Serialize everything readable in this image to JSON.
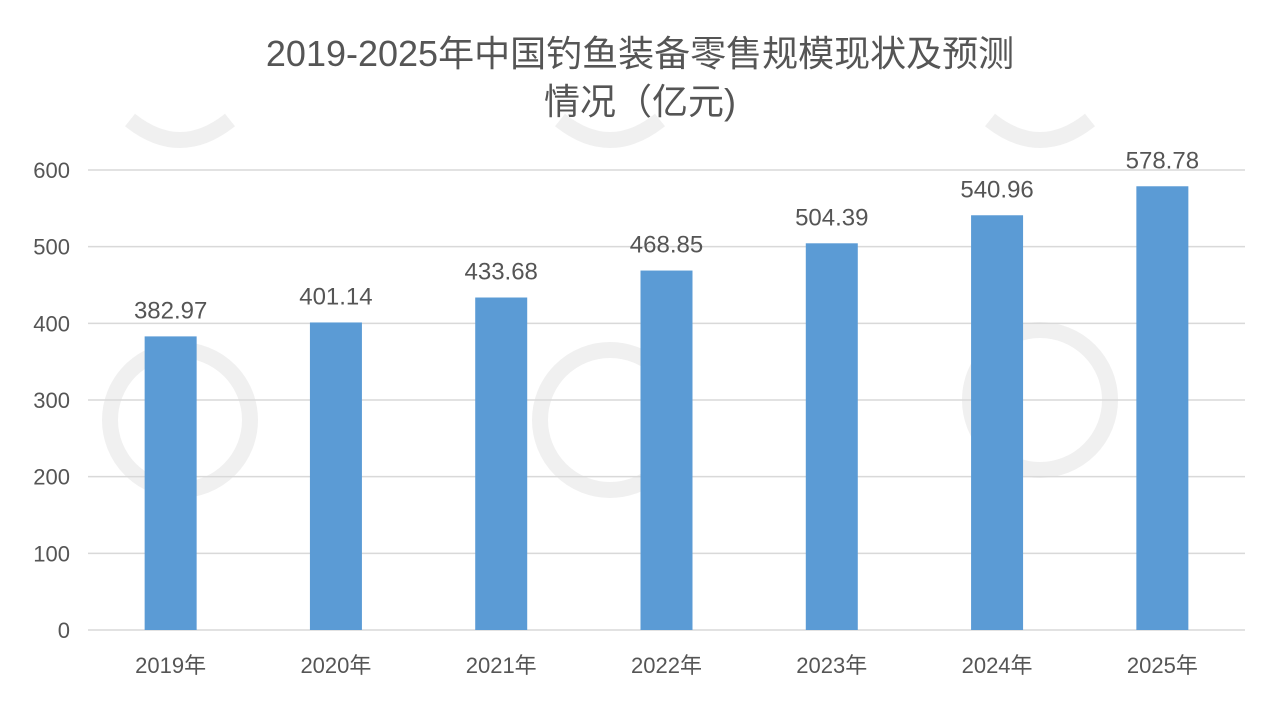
{
  "chart_data": {
    "type": "bar",
    "title_lines": [
      "2019-2025年中国钓鱼装备零售规模现状及预测",
      "情况（亿元)"
    ],
    "categories": [
      "2019年",
      "2020年",
      "2021年",
      "2022年",
      "2023年",
      "2024年",
      "2025年"
    ],
    "values": [
      382.97,
      401.14,
      433.68,
      468.85,
      504.39,
      540.96,
      578.78
    ],
    "value_labels": [
      "382.97",
      "401.14",
      "433.68",
      "468.85",
      "504.39",
      "540.96",
      "578.78"
    ],
    "ylim": [
      0,
      600
    ],
    "yticks": [
      0,
      100,
      200,
      300,
      400,
      500,
      600
    ],
    "grid": true,
    "bar_color": "#5b9bd5",
    "grid_color": "#d9d9d9",
    "text_color": "#555555"
  }
}
